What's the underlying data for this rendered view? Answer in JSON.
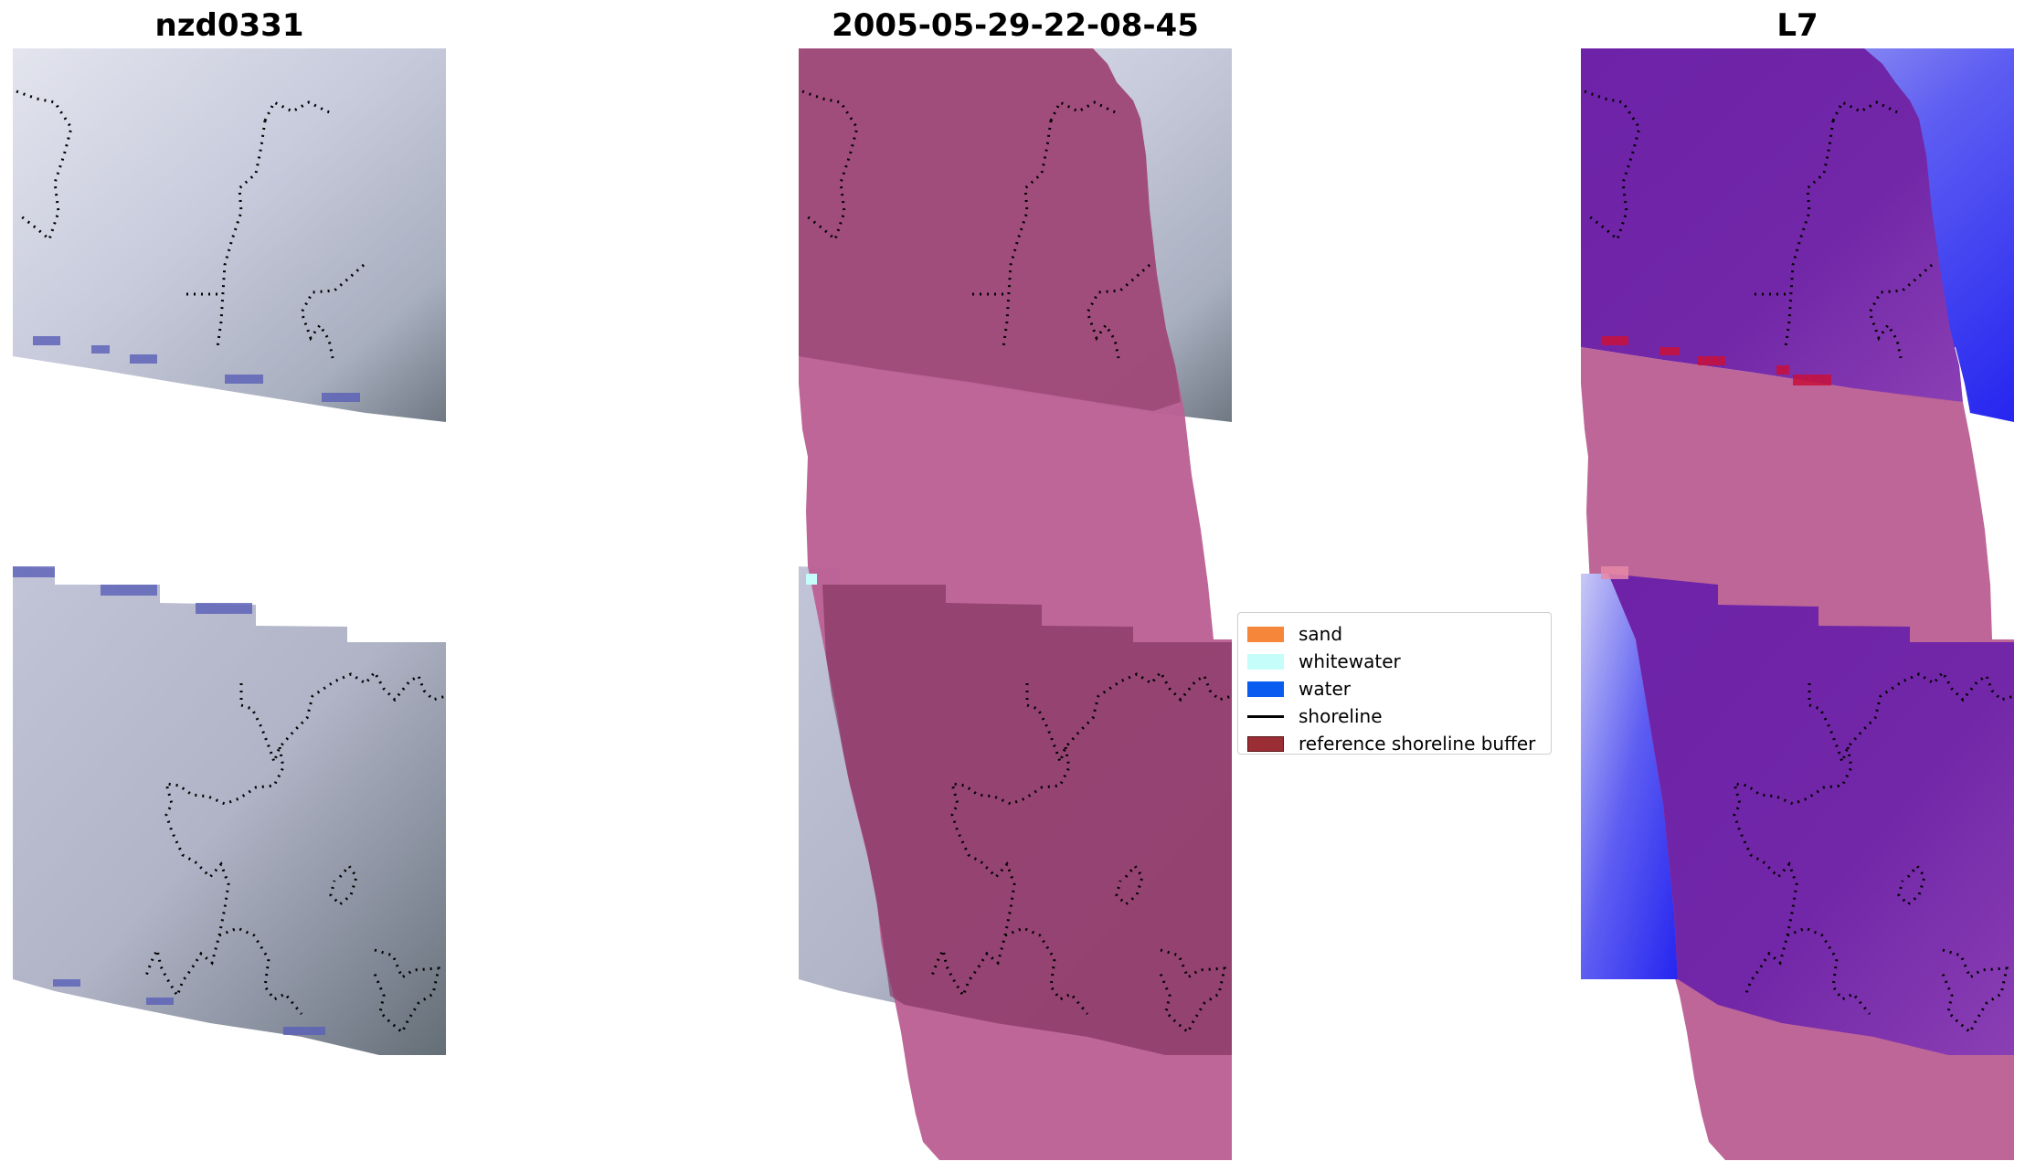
{
  "panels": [
    {
      "title": "nzd0331",
      "overlay": "none"
    },
    {
      "title": "2005-05-29-22-08-45",
      "overlay": "classified"
    },
    {
      "title": "L7",
      "overlay": "index"
    }
  ],
  "legend": {
    "placement": "center",
    "items": [
      {
        "label": "sand",
        "kind": "patch",
        "color": "#f6873a"
      },
      {
        "label": "whitewater",
        "kind": "patch",
        "color": "#c5fdfb"
      },
      {
        "label": "water",
        "kind": "patch",
        "color": "#0a5bf0"
      },
      {
        "label": "shoreline",
        "kind": "line",
        "color": "#000000"
      },
      {
        "label": "reference shoreline buffer",
        "kind": "patch",
        "color": "#9b2d34"
      }
    ]
  },
  "colors": {
    "imagery_light": "#c9ccdb",
    "imagery_dark": "#707882",
    "buffer_pink": "#bc6195",
    "buffer_dark": "#8a3a63",
    "index_purple": "#6a1fa6",
    "index_blue": "#2d2cf0",
    "water_edge": "#5a5fb8"
  },
  "icons": [
    "shoreline-dotted-trace"
  ]
}
